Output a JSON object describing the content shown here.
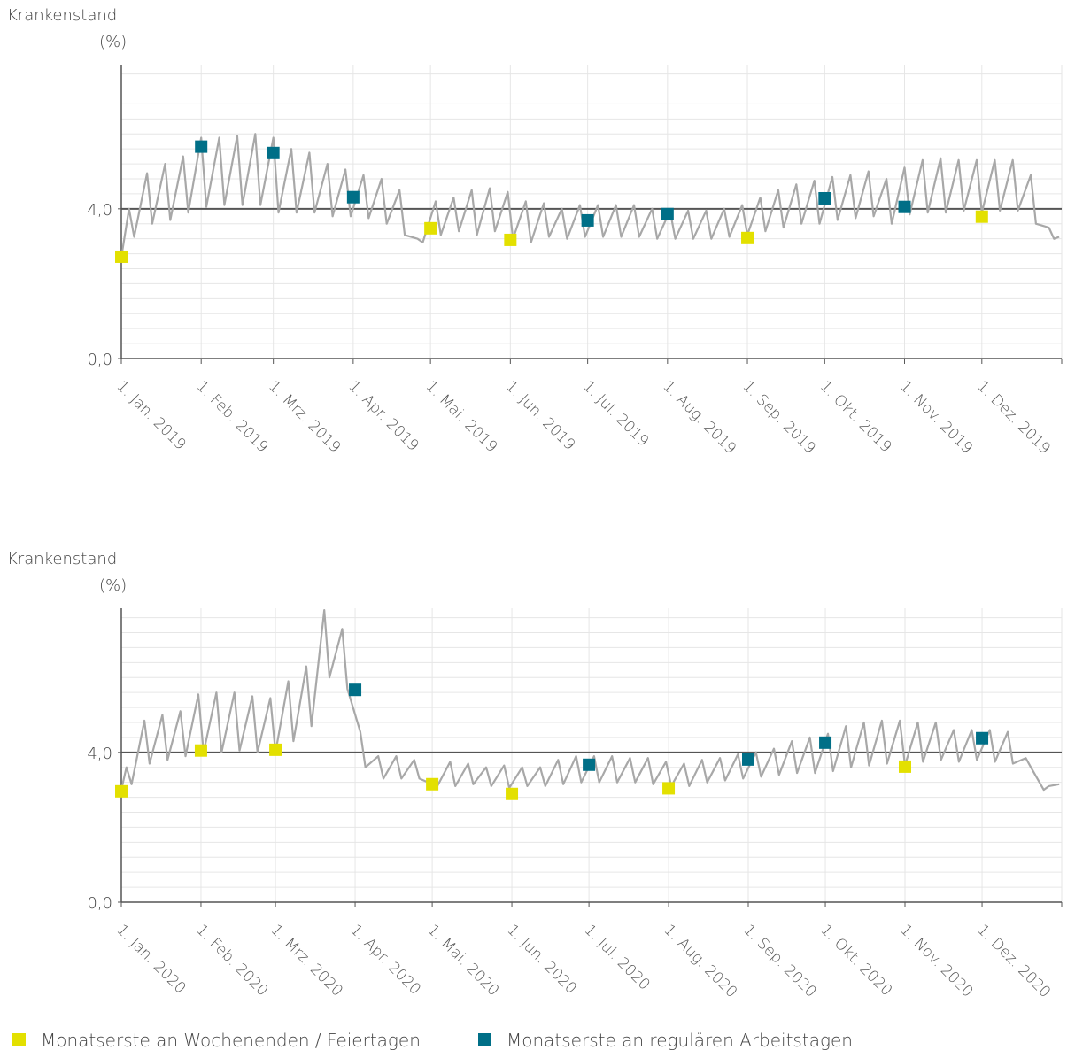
{
  "chart_data": [
    {
      "type": "line",
      "y_label": "Krankenstand",
      "y_unit": "(%)",
      "xlim": [
        0,
        365
      ],
      "xticks": [
        {
          "value": 0,
          "label": "1. Jan. 2019"
        },
        {
          "value": 31,
          "label": "1. Feb. 2019"
        },
        {
          "value": 59,
          "label": "1. Mrz. 2019"
        },
        {
          "value": 90,
          "label": "1. Apr. 2019"
        },
        {
          "value": 120,
          "label": "1. Mai. 2019"
        },
        {
          "value": 151,
          "label": "1. Jun. 2019"
        },
        {
          "value": 181,
          "label": "1. Jul. 2019"
        },
        {
          "value": 212,
          "label": "1. Aug. 2019"
        },
        {
          "value": 243,
          "label": "1. Sep. 2019"
        },
        {
          "value": 273,
          "label": "1. Okt. 2019"
        },
        {
          "value": 304,
          "label": "1. Nov. 2019"
        },
        {
          "value": 334,
          "label": "1. Dez. 2019"
        }
      ],
      "ylim": [
        0,
        7.85
      ],
      "yticks": [
        {
          "value": 0,
          "label": "0,0"
        },
        {
          "value": 4,
          "label": "4,0"
        }
      ],
      "minor_yticks": [
        0.4,
        0.8,
        1.2,
        1.6,
        2.0,
        2.4,
        2.8,
        3.2,
        3.6,
        4.4,
        4.8,
        5.2,
        5.6,
        6.0,
        6.4,
        6.8,
        7.2,
        7.6
      ],
      "reference_line": 4,
      "grid": true,
      "series": [
        {
          "type": "line",
          "color": "#a8a8a8",
          "x": [
            0,
            3,
            5,
            10,
            12,
            17,
            19,
            24,
            26,
            31,
            33,
            38,
            40,
            45,
            47,
            52,
            54,
            59,
            61,
            66,
            68,
            73,
            75,
            80,
            82,
            87,
            89,
            94,
            96,
            101,
            103,
            108,
            110,
            115,
            117,
            122,
            124,
            129,
            131,
            136,
            138,
            143,
            145,
            150,
            152,
            157,
            159,
            164,
            166,
            171,
            173,
            178,
            180,
            185,
            187,
            192,
            194,
            199,
            201,
            206,
            208,
            213,
            215,
            220,
            222,
            227,
            229,
            234,
            236,
            241,
            243,
            248,
            250,
            255,
            257,
            262,
            264,
            269,
            271,
            276,
            278,
            283,
            285,
            290,
            292,
            297,
            299,
            304,
            306,
            311,
            313,
            318,
            320,
            325,
            327,
            332,
            334,
            339,
            341,
            346,
            348,
            353,
            355,
            360,
            362,
            364
          ],
          "values": [
            2.7,
            4.0,
            3.25,
            4.95,
            3.6,
            5.2,
            3.7,
            5.4,
            3.9,
            5.9,
            4.05,
            5.9,
            4.1,
            5.95,
            4.1,
            6.0,
            4.1,
            5.9,
            3.9,
            5.6,
            3.9,
            5.5,
            3.9,
            5.2,
            3.8,
            5.05,
            3.8,
            4.9,
            3.75,
            4.8,
            3.6,
            4.5,
            3.3,
            3.2,
            3.1,
            4.2,
            3.3,
            4.3,
            3.4,
            4.5,
            3.3,
            4.55,
            3.4,
            4.45,
            3.2,
            4.2,
            3.1,
            4.15,
            3.25,
            4.0,
            3.2,
            4.1,
            3.25,
            4.1,
            3.25,
            4.1,
            3.25,
            4.1,
            3.25,
            4.0,
            3.2,
            3.95,
            3.2,
            3.95,
            3.2,
            3.95,
            3.2,
            4.0,
            3.25,
            4.1,
            3.3,
            4.3,
            3.4,
            4.5,
            3.5,
            4.65,
            3.6,
            4.75,
            3.6,
            4.85,
            3.7,
            4.9,
            3.75,
            5.0,
            3.8,
            4.8,
            3.6,
            5.1,
            3.85,
            5.3,
            3.9,
            5.35,
            3.9,
            5.3,
            3.95,
            5.3,
            3.9,
            5.3,
            3.95,
            5.3,
            3.95,
            4.9,
            3.6,
            3.5,
            3.2,
            3.25
          ]
        },
        {
          "type": "scatter",
          "name": "Monatserste an Wochenenden / Feiertagen",
          "color": "#e3e000",
          "x": [
            0,
            120,
            151,
            243,
            334
          ],
          "values": [
            2.72,
            3.48,
            3.17,
            3.22,
            3.79
          ]
        },
        {
          "type": "scatter",
          "name": "Monatserste an regulären Arbeitstagen",
          "color": "#006f87",
          "x": [
            31,
            59,
            90,
            181,
            212,
            273,
            304
          ],
          "values": [
            5.66,
            5.49,
            4.31,
            3.69,
            3.86,
            4.28,
            4.05
          ]
        }
      ]
    },
    {
      "type": "line",
      "y_label": "Krankenstand",
      "y_unit": "(%)",
      "xlim": [
        0,
        366
      ],
      "xticks": [
        {
          "value": 0,
          "label": "1. Jan. 2020"
        },
        {
          "value": 31,
          "label": "1. Feb. 2020"
        },
        {
          "value": 60,
          "label": "1. Mrz. 2020"
        },
        {
          "value": 91,
          "label": "1. Apr. 2020"
        },
        {
          "value": 121,
          "label": "1. Mai. 2020"
        },
        {
          "value": 152,
          "label": "1. Jun. 2020"
        },
        {
          "value": 182,
          "label": "1. Jul. 2020"
        },
        {
          "value": 213,
          "label": "1. Aug. 2020"
        },
        {
          "value": 244,
          "label": "1. Sep. 2020"
        },
        {
          "value": 274,
          "label": "1. Okt. 2020"
        },
        {
          "value": 305,
          "label": "1. Nov. 2020"
        },
        {
          "value": 335,
          "label": "1. Dez. 2020"
        }
      ],
      "ylim": [
        0,
        7.85
      ],
      "yticks": [
        {
          "value": 0,
          "label": "0,0"
        },
        {
          "value": 4,
          "label": "4,0"
        }
      ],
      "minor_yticks": [
        0.4,
        0.8,
        1.2,
        1.6,
        2.0,
        2.4,
        2.8,
        3.2,
        3.6,
        4.4,
        4.8,
        5.2,
        5.6,
        6.0,
        6.4,
        6.8,
        7.2,
        7.6
      ],
      "reference_line": 4,
      "grid": true,
      "series": [
        {
          "type": "line",
          "color": "#a8a8a8",
          "x": [
            0,
            2,
            4,
            9,
            11,
            16,
            18,
            23,
            25,
            30,
            32,
            37,
            39,
            44,
            46,
            51,
            53,
            58,
            60,
            65,
            67,
            72,
            74,
            79,
            81,
            86,
            88,
            93,
            95,
            100,
            102,
            107,
            109,
            114,
            116,
            121,
            123,
            128,
            130,
            135,
            137,
            142,
            144,
            149,
            151,
            156,
            158,
            163,
            165,
            170,
            172,
            177,
            179,
            184,
            186,
            191,
            193,
            198,
            200,
            205,
            207,
            212,
            214,
            219,
            221,
            226,
            228,
            233,
            235,
            240,
            242,
            247,
            249,
            254,
            256,
            261,
            263,
            268,
            270,
            275,
            277,
            282,
            284,
            289,
            291,
            296,
            298,
            303,
            305,
            310,
            312,
            317,
            319,
            324,
            326,
            331,
            333,
            338,
            340,
            345,
            347,
            352,
            354,
            359,
            361,
            365
          ],
          "values": [
            3.0,
            3.6,
            3.15,
            4.85,
            3.7,
            5.0,
            3.8,
            5.1,
            3.9,
            5.55,
            4.0,
            5.6,
            4.0,
            5.6,
            4.05,
            5.5,
            4.0,
            5.45,
            4.0,
            5.9,
            4.3,
            6.3,
            4.7,
            7.8,
            6.0,
            7.3,
            5.7,
            4.55,
            3.6,
            3.9,
            3.3,
            3.9,
            3.3,
            3.8,
            3.3,
            3.15,
            3.1,
            3.75,
            3.1,
            3.7,
            3.15,
            3.6,
            3.1,
            3.65,
            3.05,
            3.6,
            3.1,
            3.6,
            3.1,
            3.8,
            3.15,
            3.9,
            3.2,
            3.9,
            3.2,
            3.9,
            3.2,
            3.85,
            3.2,
            3.85,
            3.15,
            3.75,
            3.1,
            3.7,
            3.1,
            3.8,
            3.2,
            3.85,
            3.25,
            3.95,
            3.3,
            4.0,
            3.35,
            4.1,
            3.4,
            4.3,
            3.45,
            4.4,
            3.45,
            4.5,
            3.5,
            4.7,
            3.6,
            4.8,
            3.65,
            4.85,
            3.7,
            4.85,
            3.65,
            4.8,
            3.75,
            4.8,
            3.8,
            4.6,
            3.75,
            4.6,
            3.8,
            4.6,
            3.75,
            4.55,
            3.7,
            3.85,
            3.6,
            3.0,
            3.1,
            3.15
          ]
        },
        {
          "type": "scatter",
          "color": "#e3e000",
          "x": [
            0,
            31,
            60,
            121,
            152,
            213,
            305
          ],
          "values": [
            2.96,
            4.05,
            4.07,
            3.15,
            2.89,
            3.04,
            3.62
          ]
        },
        {
          "type": "scatter",
          "color": "#006f87",
          "x": [
            91,
            182,
            244,
            274,
            335
          ],
          "values": [
            5.67,
            3.67,
            3.81,
            4.26,
            4.38
          ]
        }
      ]
    }
  ]
}
